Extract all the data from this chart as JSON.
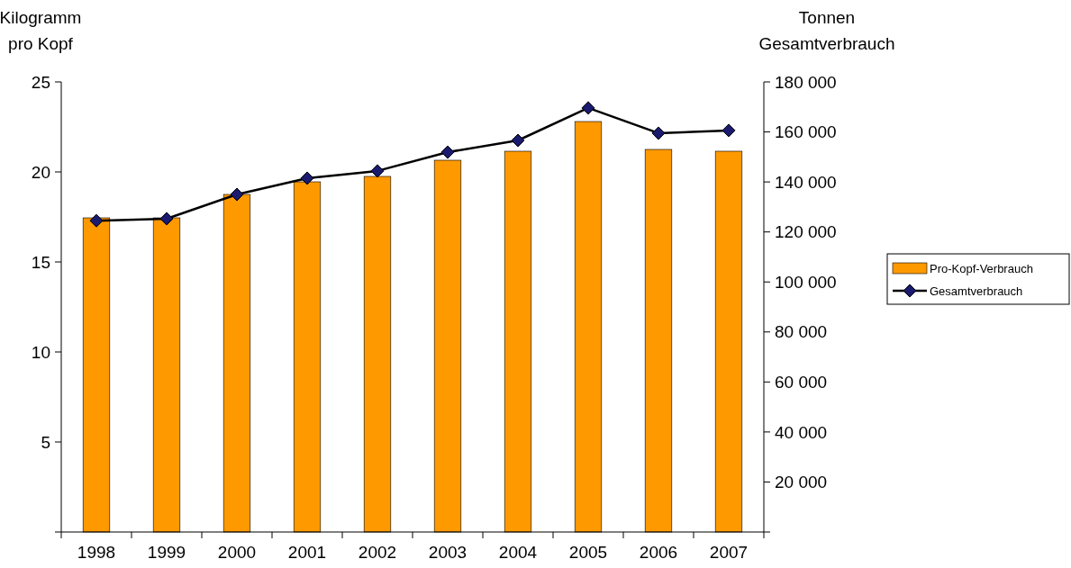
{
  "chart_data": {
    "type": "bar",
    "ylabel": "Kilogramm\npro Kopf",
    "y2label": "Tonnen\nGesamtverbrauch",
    "categories": [
      "1998",
      "1999",
      "2000",
      "2001",
      "2002",
      "2003",
      "2004",
      "2005",
      "2006",
      "2007"
    ],
    "series": [
      {
        "name": "Pro-Kopf-Verbrauch",
        "color": "#ff9900",
        "values": [
          17.45,
          17.45,
          18.75,
          19.45,
          19.75,
          20.65,
          21.15,
          22.8,
          21.25,
          21.15
        ]
      },
      {
        "name": "Gesamtverbrauch",
        "type": "line",
        "axis": "y2",
        "color": "#000000",
        "marker": "diamond",
        "values": [
          124500,
          125300,
          135000,
          141500,
          144400,
          151900,
          156600,
          169600,
          159500,
          160600
        ]
      }
    ],
    "ylim": [
      0,
      25
    ],
    "yticks": [
      {
        "value": 0,
        "label": null
      },
      5,
      10,
      15,
      20,
      25
    ],
    "y2lim": [
      0,
      180000
    ],
    "y2ticks": [
      {
        "value": 0,
        "label": null
      },
      {
        "value": 20000,
        "label": "20 000"
      },
      {
        "value": 40000,
        "label": "40 000"
      },
      {
        "value": 60000,
        "label": "60 000"
      },
      {
        "value": 80000,
        "label": "80 000"
      },
      {
        "value": 100000,
        "label": "100 000"
      },
      {
        "value": 120000,
        "label": "120 000"
      },
      {
        "value": 140000,
        "label": "140 000"
      },
      {
        "value": 160000,
        "label": "160 000"
      },
      {
        "value": 180000,
        "label": "180 000"
      }
    ],
    "legend": "right",
    "grid": false
  }
}
